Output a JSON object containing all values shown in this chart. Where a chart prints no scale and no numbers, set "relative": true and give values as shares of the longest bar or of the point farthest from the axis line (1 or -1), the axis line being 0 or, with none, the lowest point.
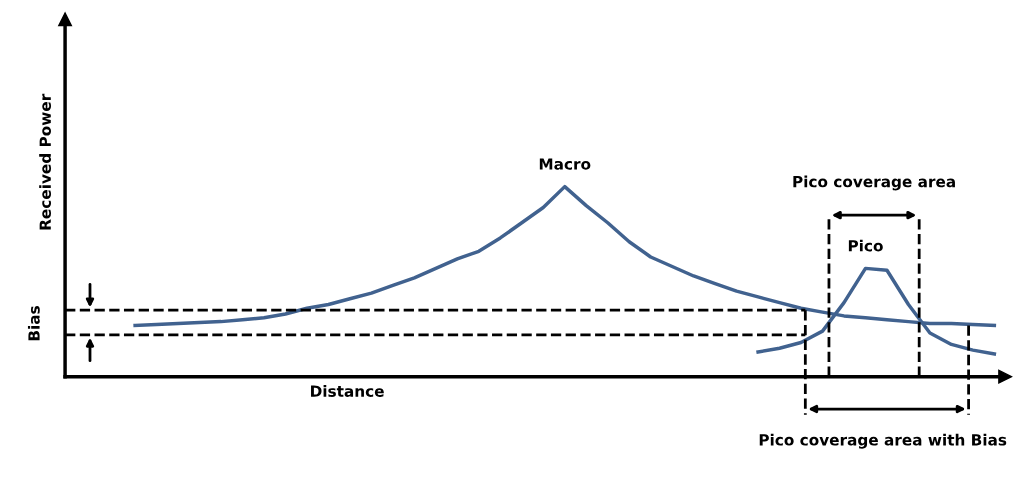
{
  "chart_data": {
    "type": "line",
    "relative": true,
    "xlabel": "Distance",
    "ylabel": "Received Power",
    "categories": [
      null,
      null,
      null,
      null,
      null,
      null,
      null,
      null,
      null,
      null,
      null,
      null,
      null,
      null,
      null,
      null,
      null,
      null,
      null,
      null,
      null,
      null,
      null,
      null,
      null,
      null,
      null,
      null,
      null,
      null,
      null,
      null,
      null,
      null,
      null,
      null,
      null,
      null,
      null,
      null,
      null
    ],
    "series": [
      {
        "name": "Macro",
        "color": "#41628f",
        "values": [
          0.27,
          0.275,
          0.28,
          0.285,
          0.29,
          0.3,
          0.31,
          0.33,
          0.36,
          0.38,
          0.41,
          0.44,
          0.48,
          0.52,
          0.57,
          0.62,
          0.66,
          0.73,
          0.81,
          0.89,
          1.0,
          0.9,
          0.81,
          0.71,
          0.63,
          0.58,
          0.53,
          0.49,
          0.45,
          0.42,
          0.39,
          0.36,
          0.34,
          0.32,
          0.31,
          0.3,
          0.29,
          0.28,
          0.28,
          0.275,
          0.27
        ]
      },
      {
        "name": "Pico",
        "color": "#41628f",
        "values": [
          null,
          null,
          null,
          null,
          null,
          null,
          null,
          null,
          null,
          null,
          null,
          null,
          null,
          null,
          null,
          null,
          null,
          null,
          null,
          null,
          null,
          null,
          null,
          null,
          null,
          null,
          null,
          null,
          null,
          0.13,
          0.15,
          0.18,
          0.24,
          0.39,
          0.57,
          0.56,
          0.38,
          0.23,
          0.17,
          0.14,
          0.12
        ]
      }
    ],
    "annotations": [
      "Bias",
      "Pico coverage area",
      "Pico coverage area with Bias"
    ],
    "marker": "none",
    "line_style": "solid",
    "legend": false
  }
}
